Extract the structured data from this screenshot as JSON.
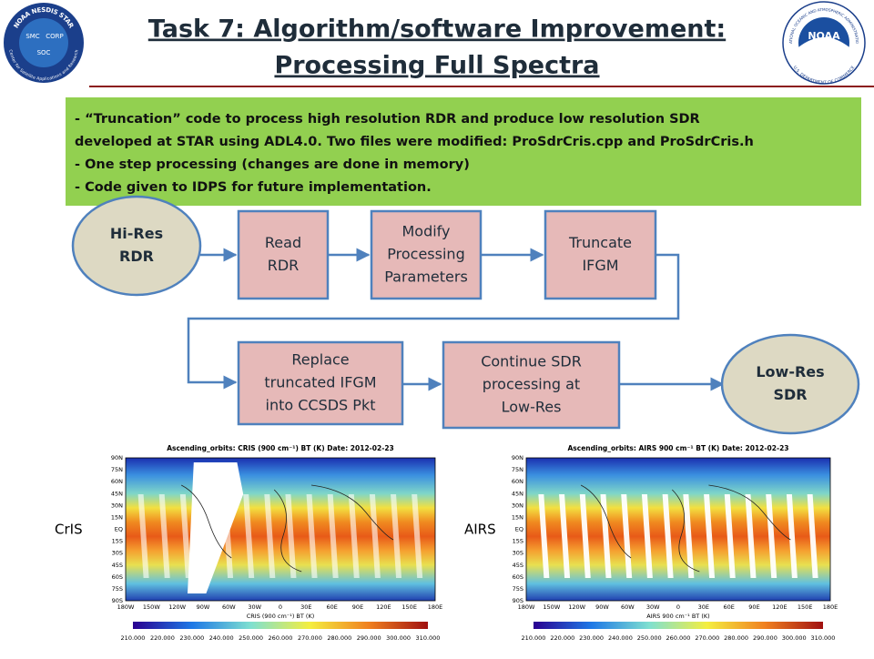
{
  "header": {
    "title_lines": [
      "Task 7: Algorithm/software Improvement:",
      "Processing Full Spectra"
    ],
    "left_logo": {
      "ring_top": "NOAA NESDIS STAR",
      "ring_bottom": "Center for Satellite Applications and Research",
      "labels": [
        "SMC",
        "CORP",
        "SOC"
      ]
    },
    "right_logo": {
      "ring_top": "NATIONAL OCEANIC AND ATMOSPHERIC ADMINISTRATION",
      "ring_bottom": "U.S. DEPARTMENT OF COMMERCE",
      "label": "NOAA"
    }
  },
  "summary": {
    "lines": [
      "- “Truncation” code to process high resolution RDR and produce low resolution SDR",
      "developed at STAR using ADL4.0. Two files were modified: ProSdrCris.cpp and ProSdrCris.h",
      "- One step processing (changes are done in memory)",
      "- Code given to IDPS for future implementation."
    ]
  },
  "flow": {
    "nodes": [
      {
        "lines": [
          "Hi-Res",
          "RDR"
        ]
      },
      {
        "lines": [
          "Read",
          "RDR"
        ]
      },
      {
        "lines": [
          "Modify",
          "Processing",
          "Parameters"
        ]
      },
      {
        "lines": [
          "Truncate",
          "IFGM"
        ]
      },
      {
        "lines": [
          "Replace",
          "truncated IFGM",
          "into CCSDS Pkt"
        ]
      },
      {
        "lines": [
          "Continue SDR",
          "processing at",
          "Low-Res"
        ]
      },
      {
        "lines": [
          "Low-Res",
          "SDR"
        ]
      }
    ]
  },
  "maps": {
    "panels": [
      {
        "side_label": "CrIS",
        "title": "Ascending_orbits: CRIS (900 cm⁻¹) BT (K) Date: 2012-02-23",
        "colorbar_label": "CRIS (900 cm⁻¹) BT (K)"
      },
      {
        "side_label": "AIRS",
        "title": "Ascending_orbits: AIRS 900 cm⁻¹ BT (K) Date: 2012-02-23",
        "colorbar_label": "AIRS 900 cm⁻¹ BT (K)"
      }
    ],
    "lat_labels": [
      "90N",
      "75N",
      "60N",
      "45N",
      "30N",
      "15N",
      "EQ",
      "15S",
      "30S",
      "45S",
      "60S",
      "75S",
      "90S"
    ],
    "lon_labels": [
      "180W",
      "150W",
      "120W",
      "90W",
      "60W",
      "30W",
      "0",
      "30E",
      "60E",
      "90E",
      "120E",
      "150E",
      "180E"
    ],
    "colorbar_ticks": [
      "210.000",
      "220.000",
      "230.000",
      "240.000",
      "250.000",
      "260.000",
      "270.000",
      "280.000",
      "290.000",
      "300.000",
      "310.000"
    ]
  }
}
